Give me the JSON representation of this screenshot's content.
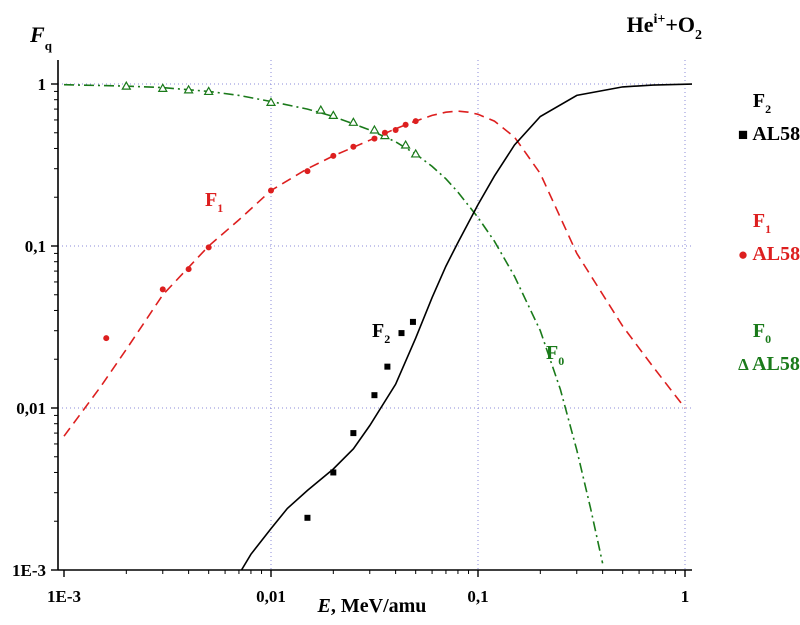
{
  "chart_data": {
    "type": "line",
    "title": "He<sup>i+</sup>+O<sub>2</sub>",
    "title_parts": {
      "base": "He",
      "sup": "i+",
      "mid": "+O",
      "sub": "2"
    },
    "ylabel": {
      "main": "F",
      "sub": "q"
    },
    "xlabel": {
      "italic": "E",
      "rest": ", MeV/amu"
    },
    "x_scale": "log",
    "y_scale": "log",
    "xlim": [
      0.001,
      1.1
    ],
    "ylim": [
      0.001,
      1.3
    ],
    "grid": true,
    "x_ticks": [
      {
        "value": 0.001,
        "label": "1E-3"
      },
      {
        "value": 0.01,
        "label": "0,01"
      },
      {
        "value": 0.1,
        "label": "0,1"
      },
      {
        "value": 1,
        "label": "1"
      }
    ],
    "y_ticks": [
      {
        "value": 0.001,
        "label": "1E-3"
      },
      {
        "value": 0.01,
        "label": "0,01"
      },
      {
        "value": 0.1,
        "label": "0,1"
      },
      {
        "value": 1,
        "label": "1"
      }
    ],
    "series": [
      {
        "key": "F0",
        "label_main": "F",
        "label_sub": "0",
        "color": "#1a7a1a",
        "dash": "10 4 2 4",
        "curve": [
          [
            0.001,
            0.99
          ],
          [
            0.002,
            0.97
          ],
          [
            0.003,
            0.95
          ],
          [
            0.005,
            0.9
          ],
          [
            0.007,
            0.85
          ],
          [
            0.01,
            0.78
          ],
          [
            0.015,
            0.7
          ],
          [
            0.02,
            0.63
          ],
          [
            0.03,
            0.52
          ],
          [
            0.04,
            0.44
          ],
          [
            0.05,
            0.37
          ],
          [
            0.06,
            0.31
          ],
          [
            0.07,
            0.26
          ],
          [
            0.08,
            0.215
          ],
          [
            0.1,
            0.15
          ],
          [
            0.12,
            0.107
          ],
          [
            0.15,
            0.065
          ],
          [
            0.2,
            0.03
          ],
          [
            0.25,
            0.013
          ],
          [
            0.3,
            0.0055
          ],
          [
            0.35,
            0.0024
          ],
          [
            0.4,
            0.0011
          ]
        ],
        "points": [
          [
            0.002,
            0.97
          ],
          [
            0.003,
            0.94
          ],
          [
            0.004,
            0.92
          ],
          [
            0.005,
            0.9
          ],
          [
            0.01,
            0.77
          ],
          [
            0.0174,
            0.69
          ],
          [
            0.02,
            0.64
          ],
          [
            0.025,
            0.58
          ],
          [
            0.0316,
            0.52
          ],
          [
            0.0355,
            0.48
          ],
          [
            0.0447,
            0.42
          ],
          [
            0.05,
            0.37
          ]
        ],
        "marker": "triangle",
        "legend_label": "AL58",
        "legend_symbol": "Δ"
      },
      {
        "key": "F1",
        "label_main": "F",
        "label_sub": "1",
        "color": "#dd1f1f",
        "dash": "10 6",
        "curve": [
          [
            0.001,
            0.0067
          ],
          [
            0.0015,
            0.0135
          ],
          [
            0.002,
            0.023
          ],
          [
            0.003,
            0.05
          ],
          [
            0.005,
            0.1
          ],
          [
            0.007,
            0.145
          ],
          [
            0.01,
            0.22
          ],
          [
            0.015,
            0.3
          ],
          [
            0.02,
            0.36
          ],
          [
            0.03,
            0.45
          ],
          [
            0.04,
            0.53
          ],
          [
            0.05,
            0.59
          ],
          [
            0.06,
            0.64
          ],
          [
            0.07,
            0.67
          ],
          [
            0.08,
            0.68
          ],
          [
            0.09,
            0.67
          ],
          [
            0.1,
            0.65
          ],
          [
            0.12,
            0.59
          ],
          [
            0.15,
            0.47
          ],
          [
            0.2,
            0.28
          ],
          [
            0.3,
            0.09
          ],
          [
            0.5,
            0.032
          ],
          [
            0.7,
            0.018
          ],
          [
            1,
            0.01
          ]
        ],
        "points": [
          [
            0.0016,
            0.027
          ],
          [
            0.003,
            0.054
          ],
          [
            0.004,
            0.072
          ],
          [
            0.005,
            0.098
          ],
          [
            0.01,
            0.22
          ],
          [
            0.015,
            0.29
          ],
          [
            0.02,
            0.36
          ],
          [
            0.025,
            0.41
          ],
          [
            0.0316,
            0.46
          ],
          [
            0.0355,
            0.5
          ],
          [
            0.04,
            0.52
          ],
          [
            0.0447,
            0.56
          ],
          [
            0.05,
            0.59
          ]
        ],
        "marker": "circle",
        "legend_label": "AL58",
        "legend_symbol": "●"
      },
      {
        "key": "F2",
        "label_main": "F",
        "label_sub": "2",
        "color": "#000000",
        "dash": "",
        "curve": [
          [
            0.0072,
            0.001
          ],
          [
            0.008,
            0.00125
          ],
          [
            0.01,
            0.0018
          ],
          [
            0.012,
            0.0024
          ],
          [
            0.015,
            0.0031
          ],
          [
            0.02,
            0.0042
          ],
          [
            0.025,
            0.0056
          ],
          [
            0.03,
            0.0078
          ],
          [
            0.04,
            0.014
          ],
          [
            0.05,
            0.027
          ],
          [
            0.06,
            0.048
          ],
          [
            0.07,
            0.075
          ],
          [
            0.08,
            0.105
          ],
          [
            0.1,
            0.18
          ],
          [
            0.12,
            0.27
          ],
          [
            0.15,
            0.42
          ],
          [
            0.2,
            0.63
          ],
          [
            0.3,
            0.85
          ],
          [
            0.5,
            0.96
          ],
          [
            0.7,
            0.985
          ],
          [
            1.1,
            1.0
          ]
        ],
        "points": [
          [
            0.015,
            0.0021
          ],
          [
            0.02,
            0.004
          ],
          [
            0.025,
            0.007
          ],
          [
            0.0316,
            0.012
          ],
          [
            0.0365,
            0.018
          ],
          [
            0.0427,
            0.029
          ],
          [
            0.0485,
            0.034
          ]
        ],
        "marker": "square",
        "legend_label": "AL58",
        "legend_symbol": "■"
      }
    ]
  }
}
